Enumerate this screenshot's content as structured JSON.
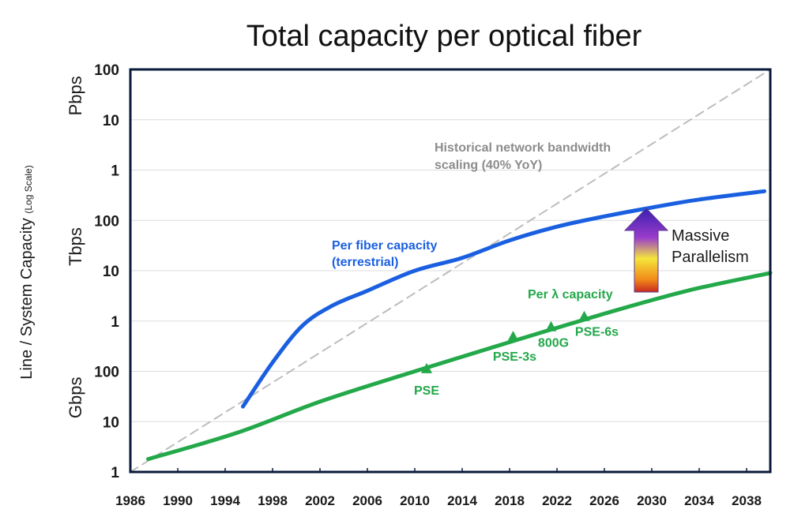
{
  "chart_data": {
    "type": "line",
    "title": "Total capacity per optical fiber",
    "ylabel": "Line / System Capacity",
    "ylabel_note": "(Log Scale)",
    "yscale": "log",
    "x_ticks": [
      "1986",
      "1990",
      "1994",
      "1998",
      "2002",
      "2006",
      "2010",
      "2014",
      "2018",
      "2022",
      "2026",
      "2030",
      "2034",
      "2038"
    ],
    "xlim": [
      1986,
      2040
    ],
    "ylim_gbps": [
      1,
      100000000
    ],
    "y_ticks": [
      {
        "value_gbps": 1,
        "label": "1"
      },
      {
        "value_gbps": 10,
        "label": "10"
      },
      {
        "value_gbps": 100,
        "label": "100"
      },
      {
        "value_gbps": 1000,
        "label": "1"
      },
      {
        "value_gbps": 10000,
        "label": "10"
      },
      {
        "value_gbps": 100000,
        "label": "100"
      },
      {
        "value_gbps": 1000000,
        "label": "1"
      },
      {
        "value_gbps": 10000000,
        "label": "10"
      },
      {
        "value_gbps": 100000000,
        "label": "100"
      }
    ],
    "unit_labels": [
      {
        "text": "Gbps",
        "value_gbps": 30
      },
      {
        "text": "Tbps",
        "value_gbps": 30000
      },
      {
        "text": "Pbps",
        "value_gbps": 30000000
      }
    ],
    "grid": true,
    "series": [
      {
        "name": "Historical network bandwidth scaling (40% YoY)",
        "style": "dashed",
        "color": "#bdbdbd",
        "points": [
          [
            1986,
            1
          ],
          [
            2040,
            100000000
          ]
        ]
      },
      {
        "name": "Per fiber capacity (terrestrial)",
        "color": "#1a5fe0",
        "points": [
          [
            1995.5,
            20
          ],
          [
            1998,
            150
          ],
          [
            2000.5,
            800
          ],
          [
            2003,
            2000
          ],
          [
            2006,
            4000
          ],
          [
            2010,
            10000
          ],
          [
            2014,
            18000
          ],
          [
            2018,
            40000
          ],
          [
            2022,
            75000
          ],
          [
            2026,
            120000
          ],
          [
            2030,
            180000
          ],
          [
            2034,
            260000
          ],
          [
            2039.5,
            380000
          ]
        ]
      },
      {
        "name": "Per λ capacity",
        "color": "#23a84a",
        "points": [
          [
            1987.5,
            1.8
          ],
          [
            1995,
            6
          ],
          [
            2002,
            25
          ],
          [
            2010,
            100
          ],
          [
            2018,
            380
          ],
          [
            2026,
            1400
          ],
          [
            2033,
            4000
          ],
          [
            2040,
            9000
          ]
        ]
      }
    ],
    "markers": [
      {
        "label": "PSE",
        "x": 2011,
        "value_gbps": 110
      },
      {
        "label": "PSE-3s",
        "x": 2018.3,
        "value_gbps": 480
      },
      {
        "label": "800G",
        "x": 2021.5,
        "value_gbps": 750
      },
      {
        "label": "PSE-6s",
        "x": 2024.3,
        "value_gbps": 1200
      }
    ],
    "annotations": {
      "historical_line1": "Historical network bandwidth",
      "historical_line2": "scaling (40% YoY)",
      "fiber_line1": "Per fiber capacity",
      "fiber_line2": "(terrestrial)",
      "lambda": "Per λ capacity",
      "parallel_line1": "Massive",
      "parallel_line2": "Parallelism"
    },
    "colors": {
      "blue": "#1a5fe0",
      "green": "#23a84a",
      "dashed": "#bdbdbd",
      "axis": "#0a1a3a",
      "grid": "#dcdcdc"
    }
  }
}
